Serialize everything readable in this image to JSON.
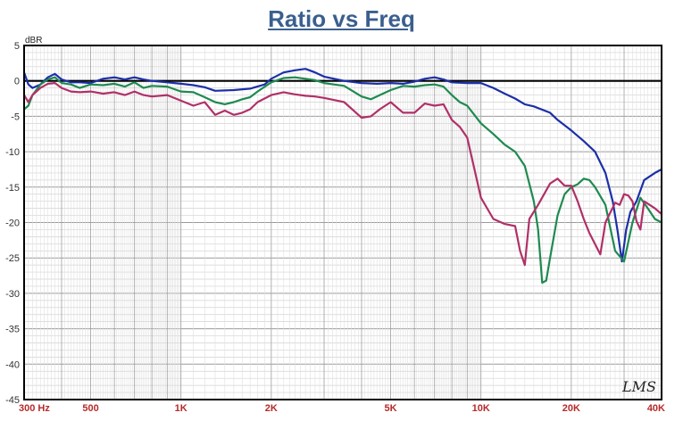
{
  "chart_data": {
    "type": "line",
    "title": "Ratio vs Freq",
    "ylabel": "dBR",
    "xlabel": "",
    "xscale": "log",
    "xlim": [
      300,
      40000
    ],
    "ylim": [
      -45,
      5
    ],
    "grid": true,
    "legend": "none",
    "watermark": "LMS",
    "yticks": [
      "5",
      "0",
      "-5",
      "-10",
      "-15",
      "-20",
      "-25",
      "-30",
      "-35",
      "-40",
      "-45"
    ],
    "xticks": [
      {
        "v": 300,
        "label": "300  Hz"
      },
      {
        "v": 500,
        "label": "500"
      },
      {
        "v": 1000,
        "label": "1K"
      },
      {
        "v": 2000,
        "label": "2K"
      },
      {
        "v": 5000,
        "label": "5K"
      },
      {
        "v": 10000,
        "label": "10K"
      },
      {
        "v": 20000,
        "label": "20K"
      },
      {
        "v": 40000,
        "label": "40K"
      }
    ],
    "series": [
      {
        "color": "#1c2fa8",
        "points": [
          [
            300,
            1.2
          ],
          [
            310,
            -0.5
          ],
          [
            320,
            -1
          ],
          [
            340,
            -0.5
          ],
          [
            360,
            0.5
          ],
          [
            380,
            1
          ],
          [
            400,
            0.2
          ],
          [
            430,
            -0.2
          ],
          [
            460,
            -0.2
          ],
          [
            500,
            -0.3
          ],
          [
            550,
            0.3
          ],
          [
            600,
            0.5
          ],
          [
            650,
            0.2
          ],
          [
            700,
            0.5
          ],
          [
            750,
            0.2
          ],
          [
            800,
            0
          ],
          [
            900,
            -0.2
          ],
          [
            1000,
            -0.4
          ],
          [
            1100,
            -0.6
          ],
          [
            1200,
            -0.9
          ],
          [
            1300,
            -1.4
          ],
          [
            1500,
            -1.3
          ],
          [
            1700,
            -1.1
          ],
          [
            1900,
            -0.5
          ],
          [
            2000,
            0.3
          ],
          [
            2200,
            1.2
          ],
          [
            2400,
            1.5
          ],
          [
            2600,
            1.7
          ],
          [
            2800,
            1.2
          ],
          [
            3000,
            0.6
          ],
          [
            3500,
            0
          ],
          [
            4000,
            -0.3
          ],
          [
            4500,
            -0.4
          ],
          [
            5000,
            -0.3
          ],
          [
            5500,
            -0.4
          ],
          [
            6000,
            -0.1
          ],
          [
            6500,
            0.3
          ],
          [
            7000,
            0.5
          ],
          [
            7500,
            0.2
          ],
          [
            8000,
            -0.2
          ],
          [
            9000,
            -0.3
          ],
          [
            10000,
            -0.3
          ],
          [
            11000,
            -1
          ],
          [
            12000,
            -1.8
          ],
          [
            13000,
            -2.5
          ],
          [
            14000,
            -3.3
          ],
          [
            15000,
            -3.6
          ],
          [
            17000,
            -4.5
          ],
          [
            18000,
            -5.5
          ],
          [
            20000,
            -7
          ],
          [
            22000,
            -8.5
          ],
          [
            24000,
            -10
          ],
          [
            26000,
            -13
          ],
          [
            27500,
            -17
          ],
          [
            28500,
            -21
          ],
          [
            29500,
            -25.5
          ],
          [
            30500,
            -21
          ],
          [
            31500,
            -18.5
          ],
          [
            33000,
            -17
          ],
          [
            35000,
            -14
          ],
          [
            38000,
            -13
          ],
          [
            40000,
            -12.5
          ]
        ]
      },
      {
        "color": "#1e8a50",
        "points": [
          [
            300,
            -4
          ],
          [
            310,
            -3.5
          ],
          [
            320,
            -2
          ],
          [
            340,
            -0.5
          ],
          [
            360,
            0.2
          ],
          [
            380,
            0.5
          ],
          [
            400,
            -0.3
          ],
          [
            430,
            -0.5
          ],
          [
            460,
            -1
          ],
          [
            500,
            -0.5
          ],
          [
            550,
            -0.6
          ],
          [
            600,
            -0.4
          ],
          [
            650,
            -0.8
          ],
          [
            700,
            -0.2
          ],
          [
            750,
            -1
          ],
          [
            800,
            -0.7
          ],
          [
            900,
            -0.8
          ],
          [
            1000,
            -1.5
          ],
          [
            1100,
            -1.6
          ],
          [
            1200,
            -2.3
          ],
          [
            1300,
            -3
          ],
          [
            1400,
            -3.3
          ],
          [
            1500,
            -3
          ],
          [
            1600,
            -2.6
          ],
          [
            1700,
            -2.3
          ],
          [
            1800,
            -1.5
          ],
          [
            2000,
            -0.2
          ],
          [
            2200,
            0.4
          ],
          [
            2400,
            0.5
          ],
          [
            2600,
            0.3
          ],
          [
            2800,
            0.1
          ],
          [
            3000,
            -0.3
          ],
          [
            3500,
            -0.7
          ],
          [
            4000,
            -2.2
          ],
          [
            4300,
            -2.6
          ],
          [
            4600,
            -2
          ],
          [
            5000,
            -1.3
          ],
          [
            5500,
            -0.7
          ],
          [
            6000,
            -0.8
          ],
          [
            6500,
            -0.6
          ],
          [
            7000,
            -0.5
          ],
          [
            7500,
            -0.8
          ],
          [
            8000,
            -2
          ],
          [
            8500,
            -3
          ],
          [
            9000,
            -3.5
          ],
          [
            10000,
            -6
          ],
          [
            11000,
            -7.5
          ],
          [
            12000,
            -9
          ],
          [
            13000,
            -10
          ],
          [
            14000,
            -12
          ],
          [
            15000,
            -17
          ],
          [
            15500,
            -21
          ],
          [
            16000,
            -28.5
          ],
          [
            16500,
            -28.2
          ],
          [
            17000,
            -25
          ],
          [
            18000,
            -19
          ],
          [
            19000,
            -16
          ],
          [
            20000,
            -15
          ],
          [
            21000,
            -14.6
          ],
          [
            22000,
            -13.8
          ],
          [
            23000,
            -14
          ],
          [
            24000,
            -15
          ],
          [
            26000,
            -17.5
          ],
          [
            28000,
            -24
          ],
          [
            30000,
            -25.5
          ],
          [
            32000,
            -20
          ],
          [
            34000,
            -16.5
          ],
          [
            36000,
            -18
          ],
          [
            38000,
            -19.5
          ],
          [
            40000,
            -20
          ]
        ]
      },
      {
        "color": "#b03068",
        "points": [
          [
            300,
            -2
          ],
          [
            310,
            -3
          ],
          [
            320,
            -2
          ],
          [
            340,
            -1
          ],
          [
            360,
            -0.4
          ],
          [
            380,
            -0.3
          ],
          [
            400,
            -1
          ],
          [
            430,
            -1.5
          ],
          [
            460,
            -1.6
          ],
          [
            500,
            -1.5
          ],
          [
            550,
            -1.8
          ],
          [
            600,
            -1.6
          ],
          [
            650,
            -2
          ],
          [
            700,
            -1.5
          ],
          [
            750,
            -2
          ],
          [
            800,
            -2.2
          ],
          [
            900,
            -2
          ],
          [
            1000,
            -2.8
          ],
          [
            1100,
            -3.5
          ],
          [
            1200,
            -3
          ],
          [
            1300,
            -4.8
          ],
          [
            1400,
            -4.2
          ],
          [
            1500,
            -4.8
          ],
          [
            1600,
            -4.5
          ],
          [
            1700,
            -4
          ],
          [
            1800,
            -3
          ],
          [
            2000,
            -2
          ],
          [
            2200,
            -1.6
          ],
          [
            2400,
            -1.9
          ],
          [
            2600,
            -2.1
          ],
          [
            2800,
            -2.2
          ],
          [
            3000,
            -2.4
          ],
          [
            3500,
            -3
          ],
          [
            4000,
            -5.2
          ],
          [
            4300,
            -5
          ],
          [
            4600,
            -4
          ],
          [
            5000,
            -3
          ],
          [
            5500,
            -4.5
          ],
          [
            6000,
            -4.5
          ],
          [
            6500,
            -3.2
          ],
          [
            7000,
            -3.5
          ],
          [
            7500,
            -3.3
          ],
          [
            8000,
            -5.5
          ],
          [
            8500,
            -6.5
          ],
          [
            9000,
            -8
          ],
          [
            10000,
            -16.5
          ],
          [
            11000,
            -19.5
          ],
          [
            12000,
            -20.2
          ],
          [
            13000,
            -20.5
          ],
          [
            13500,
            -24
          ],
          [
            14000,
            -26
          ],
          [
            14500,
            -19.5
          ],
          [
            15500,
            -17.5
          ],
          [
            17000,
            -14.5
          ],
          [
            18000,
            -13.8
          ],
          [
            19000,
            -14.8
          ],
          [
            20000,
            -14.8
          ],
          [
            21000,
            -17
          ],
          [
            22000,
            -19.5
          ],
          [
            23000,
            -21.5
          ],
          [
            25000,
            -24.5
          ],
          [
            26000,
            -20
          ],
          [
            28000,
            -17.2
          ],
          [
            29000,
            -17.5
          ],
          [
            30000,
            -16
          ],
          [
            31000,
            -16.2
          ],
          [
            32000,
            -17
          ],
          [
            33000,
            -19.8
          ],
          [
            34000,
            -21
          ],
          [
            35000,
            -17
          ],
          [
            38000,
            -18
          ],
          [
            40000,
            -18.8
          ]
        ]
      }
    ]
  }
}
